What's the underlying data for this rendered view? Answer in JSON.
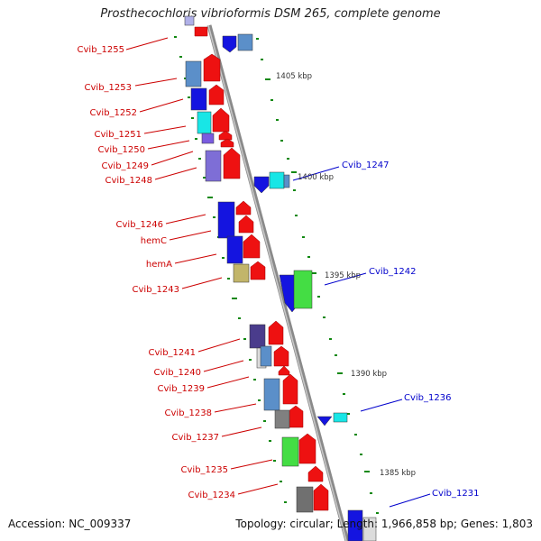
{
  "title": "Prosthecochloris vibrioformis DSM 265, complete genome",
  "footer": {
    "accession": "Accession: NC_009337",
    "summary": "Topology: circular; Length: 1,966,858 bp; Genes: 1,803"
  },
  "ticks": [
    "1405 kbp",
    "1400 kbp",
    "1395 kbp",
    "1390 kbp",
    "1385 kbp"
  ],
  "labels_left": [
    "Cvib_1255",
    "Cvib_1253",
    "Cvib_1252",
    "Cvib_1251",
    "Cvib_1250",
    "Cvib_1249",
    "Cvib_1248",
    "Cvib_1246",
    "hemC",
    "hemA",
    "Cvib_1243",
    "Cvib_1241",
    "Cvib_1240",
    "Cvib_1239",
    "Cvib_1238",
    "Cvib_1237",
    "Cvib_1235",
    "Cvib_1234"
  ],
  "labels_right": [
    "Cvib_1247",
    "Cvib_1242",
    "Cvib_1236",
    "Cvib_1231"
  ],
  "colors": {
    "forward_gene": "#ee1111",
    "reverse_label": "#0000cc",
    "forward_label": "#cc0000",
    "backbone": "#8a8a8a",
    "dot": "#118811"
  }
}
